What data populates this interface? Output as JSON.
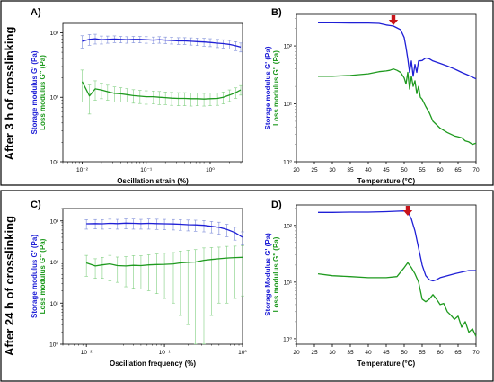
{
  "rows": [
    {
      "label": "After 3 h of crosslinking"
    },
    {
      "label": "After 24 h of crosslinking"
    }
  ],
  "colors": {
    "storage": "#1f1fd6",
    "loss": "#1f9a1f",
    "error_storage": "#7a8ad8",
    "error_loss": "#7fcf7f",
    "arrow": "#c8141a"
  },
  "chart_data": [
    {
      "panel": "A)",
      "type": "line",
      "xlabel": "Oscillation strain (%)",
      "ylabel_storage": "Storage modulus G' (Pa)",
      "ylabel_loss": "Loss modulus G\" (Pa)",
      "xscale": "log",
      "yscale": "log",
      "xlim": [
        0.005,
        3.2
      ],
      "ylim": [
        10,
        1400
      ],
      "xticks": [
        0.01,
        0.1,
        1
      ],
      "xtick_labels": [
        "10⁻²",
        "10⁻¹",
        "10⁰"
      ],
      "yticks": [
        10,
        100,
        1000
      ],
      "ytick_labels": [
        "10¹",
        "10²",
        "10³"
      ],
      "error_bars": true,
      "series": [
        {
          "key": "storage",
          "x": [
            0.01,
            0.013,
            0.016,
            0.02,
            0.025,
            0.032,
            0.04,
            0.05,
            0.063,
            0.08,
            0.1,
            0.13,
            0.16,
            0.2,
            0.25,
            0.32,
            0.4,
            0.5,
            0.63,
            0.8,
            1,
            1.3,
            1.6,
            2,
            2.5,
            3.0
          ],
          "y": [
            740,
            790,
            810,
            780,
            790,
            800,
            790,
            780,
            790,
            790,
            780,
            770,
            780,
            770,
            760,
            750,
            750,
            740,
            730,
            720,
            710,
            690,
            680,
            660,
            630,
            600
          ],
          "err": [
            160,
            150,
            140,
            110,
            100,
            95,
            90,
            90,
            90,
            90,
            90,
            90,
            90,
            90,
            90,
            90,
            90,
            95,
            95,
            100,
            100,
            100,
            100,
            100,
            100,
            95
          ]
        },
        {
          "key": "loss",
          "x": [
            0.01,
            0.013,
            0.016,
            0.02,
            0.025,
            0.032,
            0.04,
            0.05,
            0.063,
            0.08,
            0.1,
            0.13,
            0.16,
            0.2,
            0.25,
            0.32,
            0.4,
            0.5,
            0.63,
            0.8,
            1,
            1.3,
            1.6,
            2,
            2.5,
            3.0
          ],
          "y": [
            175,
            105,
            135,
            130,
            122,
            115,
            113,
            110,
            106,
            104,
            102,
            102,
            100,
            99,
            97,
            96,
            96,
            95,
            95,
            94,
            95,
            96,
            100,
            108,
            118,
            130
          ],
          "err": [
            90,
            50,
            45,
            35,
            32,
            30,
            28,
            26,
            25,
            24,
            24,
            23,
            23,
            22,
            22,
            22,
            22,
            22,
            21,
            21,
            21,
            21,
            21,
            22,
            22,
            22
          ]
        }
      ]
    },
    {
      "panel": "B)",
      "type": "line",
      "xlabel": "Temperature (°C)",
      "ylabel_storage": "Storage modulus G' (Pa)",
      "ylabel_loss": "Loss modulus G\" (Pa)",
      "xscale": "linear",
      "yscale": "log",
      "xlim": [
        20,
        70
      ],
      "ylim": [
        1,
        350
      ],
      "xticks": [
        20,
        25,
        30,
        35,
        40,
        45,
        50,
        55,
        60,
        65,
        70
      ],
      "yticks": [
        1,
        10,
        100
      ],
      "ytick_labels": [
        "10⁰",
        "10¹",
        "10²"
      ],
      "arrow_at": 47,
      "series": [
        {
          "key": "storage",
          "x": [
            26,
            30,
            35,
            40,
            43,
            45,
            46,
            47,
            48,
            49,
            50,
            50.5,
            51,
            51.5,
            52,
            52.5,
            53,
            53.5,
            54,
            55,
            56,
            57,
            58,
            60,
            62,
            64,
            66,
            68,
            70
          ],
          "y": [
            250,
            250,
            248,
            248,
            245,
            230,
            225,
            220,
            205,
            190,
            140,
            95,
            60,
            35,
            55,
            30,
            48,
            35,
            55,
            56,
            62,
            60,
            55,
            50,
            45,
            40,
            35,
            31,
            27
          ],
          "err": []
        },
        {
          "key": "loss",
          "x": [
            26,
            30,
            35,
            40,
            43,
            45,
            46,
            47,
            48,
            49,
            50,
            50.5,
            51,
            51.5,
            52,
            52.5,
            53,
            53.5,
            54,
            54.5,
            55,
            56,
            57,
            58,
            60,
            62,
            64,
            66,
            67,
            68,
            69,
            70
          ],
          "y": [
            30,
            30,
            31,
            33,
            36,
            37,
            38,
            40,
            38,
            35,
            28,
            22,
            35,
            18,
            30,
            20,
            25,
            15,
            20,
            13,
            12,
            9,
            7,
            5,
            3.8,
            3.2,
            2.8,
            2.6,
            2.3,
            2.2,
            2.0,
            2.1
          ],
          "err": []
        }
      ]
    },
    {
      "panel": "C)",
      "type": "line",
      "xlabel": "Oscillation frequency (%)",
      "ylabel_storage": "Storage modulus G' (Pa)",
      "ylabel_loss": "Loss modulus G\" (Pa)",
      "xscale": "log",
      "yscale": "log",
      "xlim": [
        0.005,
        1.0
      ],
      "ylim": [
        1,
        2000
      ],
      "xticks": [
        0.01,
        0.1,
        1
      ],
      "xtick_labels": [
        "10⁻²",
        "10⁻¹",
        "10⁰"
      ],
      "yticks": [
        1,
        10,
        100,
        1000
      ],
      "ytick_labels": [
        "10⁰",
        "10¹",
        "10²",
        "10³"
      ],
      "error_bars": true,
      "series": [
        {
          "key": "storage",
          "x": [
            0.01,
            0.013,
            0.016,
            0.02,
            0.025,
            0.032,
            0.04,
            0.05,
            0.063,
            0.08,
            0.1,
            0.13,
            0.16,
            0.2,
            0.25,
            0.32,
            0.4,
            0.5,
            0.63,
            0.8,
            1.0
          ],
          "y": [
            850,
            860,
            850,
            870,
            860,
            880,
            870,
            860,
            870,
            860,
            850,
            840,
            830,
            810,
            800,
            780,
            740,
            700,
            620,
            520,
            400
          ],
          "err": [
            220,
            220,
            220,
            230,
            230,
            240,
            240,
            230,
            240,
            240,
            240,
            240,
            240,
            240,
            240,
            240,
            230,
            230,
            210,
            180,
            140
          ]
        },
        {
          "key": "loss",
          "x": [
            0.01,
            0.013,
            0.016,
            0.02,
            0.025,
            0.032,
            0.04,
            0.05,
            0.063,
            0.08,
            0.1,
            0.13,
            0.16,
            0.2,
            0.25,
            0.32,
            0.4,
            0.5,
            0.63,
            0.8,
            1.0
          ],
          "y": [
            95,
            80,
            85,
            90,
            82,
            80,
            83,
            82,
            85,
            87,
            88,
            90,
            95,
            98,
            100,
            110,
            115,
            120,
            125,
            128,
            130
          ],
          "err": [
            50,
            40,
            45,
            55,
            50,
            55,
            60,
            60,
            65,
            70,
            75,
            80,
            90,
            95,
            100,
            110,
            110,
            110,
            115,
            115,
            115
          ]
        }
      ]
    },
    {
      "panel": "D)",
      "type": "line",
      "xlabel": "Temperature (°C)",
      "ylabel_storage": "Storage Modulus G' (Pa)",
      "ylabel_loss": "Loss modulus G\" (Pa)",
      "xscale": "linear",
      "yscale": "log",
      "xlim": [
        20,
        70
      ],
      "ylim": [
        0.8,
        230
      ],
      "xticks": [
        20,
        25,
        30,
        35,
        40,
        45,
        50,
        55,
        60,
        65,
        70
      ],
      "yticks": [
        1,
        10,
        100
      ],
      "ytick_labels": [
        "10⁰",
        "10¹",
        "10²"
      ],
      "arrow_at": 51,
      "series": [
        {
          "key": "storage",
          "x": [
            26,
            30,
            35,
            40,
            45,
            48,
            50,
            51,
            52,
            53,
            54,
            55,
            56,
            57,
            58,
            59,
            60,
            62,
            64,
            66,
            68,
            70
          ],
          "y": [
            170,
            170,
            172,
            172,
            175,
            178,
            180,
            175,
            130,
            80,
            40,
            20,
            13,
            11,
            10.5,
            11,
            12,
            13,
            14,
            15,
            16,
            16
          ],
          "err": []
        },
        {
          "key": "loss",
          "x": [
            26,
            30,
            35,
            40,
            45,
            48,
            49,
            50,
            51,
            52,
            53,
            54,
            55,
            56,
            57,
            58,
            59,
            60,
            61,
            62,
            63,
            64,
            65,
            66,
            67,
            68,
            69,
            70
          ],
          "y": [
            14,
            13,
            12.5,
            12,
            12,
            12.5,
            15,
            18,
            22,
            18,
            14,
            10,
            5,
            4.5,
            5,
            6,
            5,
            4,
            4.2,
            3,
            2.6,
            2.2,
            2.5,
            1.6,
            2.0,
            1.3,
            1.5,
            1.1
          ],
          "err": []
        }
      ]
    }
  ]
}
